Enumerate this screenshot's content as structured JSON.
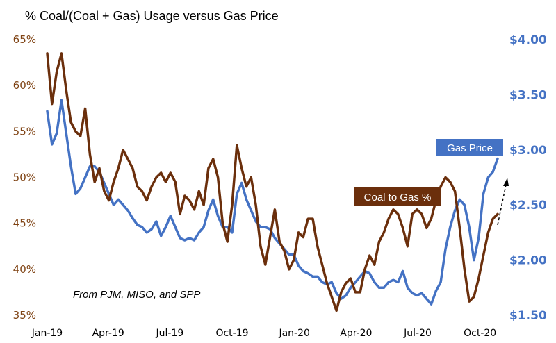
{
  "chart_data": {
    "type": "line",
    "title": "% Coal/(Coal + Gas) Usage versus Gas Price",
    "annotation": "From PJM, MISO, and SPP",
    "x_ticks": [
      "Jan-19",
      "Apr-19",
      "Jul-19",
      "Oct-19",
      "Jan-20",
      "Apr-20",
      "Jul-20",
      "Oct-20"
    ],
    "y_left": {
      "ticks": [
        "35%",
        "40%",
        "45%",
        "50%",
        "55%",
        "60%",
        "65%"
      ],
      "range": [
        35,
        65
      ]
    },
    "y_right": {
      "ticks": [
        "$1.50",
        "$2.00",
        "$2.50",
        "$3.00",
        "$3.50",
        "$4.00"
      ],
      "range": [
        1.5,
        4.0
      ]
    },
    "grid": false,
    "colors": {
      "coal": "#6b2f0c",
      "gas": "#4472c4",
      "left_axis": "#7f4314",
      "right_axis": "#4472c4"
    },
    "series": [
      {
        "name": "Coal to Gas %",
        "axis": "left",
        "x": [
          "2019-01-01",
          "2019-01-08",
          "2019-01-15",
          "2019-01-22",
          "2019-01-29",
          "2019-02-05",
          "2019-02-12",
          "2019-02-19",
          "2019-02-26",
          "2019-03-05",
          "2019-03-12",
          "2019-03-19",
          "2019-03-26",
          "2019-04-02",
          "2019-04-09",
          "2019-04-16",
          "2019-04-23",
          "2019-04-30",
          "2019-05-07",
          "2019-05-14",
          "2019-05-21",
          "2019-05-28",
          "2019-06-04",
          "2019-06-11",
          "2019-06-18",
          "2019-06-25",
          "2019-07-02",
          "2019-07-09",
          "2019-07-16",
          "2019-07-23",
          "2019-07-30",
          "2019-08-06",
          "2019-08-13",
          "2019-08-20",
          "2019-08-27",
          "2019-09-03",
          "2019-09-10",
          "2019-09-17",
          "2019-09-24",
          "2019-10-01",
          "2019-10-08",
          "2019-10-15",
          "2019-10-22",
          "2019-10-29",
          "2019-11-05",
          "2019-11-12",
          "2019-11-19",
          "2019-11-26",
          "2019-12-03",
          "2019-12-10",
          "2019-12-17",
          "2019-12-24",
          "2019-12-31",
          "2020-01-07",
          "2020-01-14",
          "2020-01-21",
          "2020-01-28",
          "2020-02-04",
          "2020-02-11",
          "2020-02-18",
          "2020-02-25",
          "2020-03-03",
          "2020-03-10",
          "2020-03-17",
          "2020-03-24",
          "2020-03-31",
          "2020-04-07",
          "2020-04-14",
          "2020-04-21",
          "2020-04-28",
          "2020-05-05",
          "2020-05-12",
          "2020-05-19",
          "2020-05-26",
          "2020-06-02",
          "2020-06-09",
          "2020-06-16",
          "2020-06-23",
          "2020-06-30",
          "2020-07-07",
          "2020-07-14",
          "2020-07-21",
          "2020-07-28",
          "2020-08-04",
          "2020-08-11",
          "2020-08-18",
          "2020-08-25",
          "2020-09-01",
          "2020-09-08",
          "2020-09-15",
          "2020-09-22",
          "2020-09-29",
          "2020-10-06",
          "2020-10-13",
          "2020-10-20",
          "2020-10-27"
        ],
        "values": [
          63.5,
          58.0,
          61.5,
          63.5,
          59.5,
          56.0,
          55.0,
          54.5,
          57.5,
          52.5,
          49.5,
          51.0,
          48.5,
          47.5,
          49.5,
          51.0,
          53.0,
          52.0,
          51.0,
          49.0,
          48.5,
          47.5,
          49.0,
          50.0,
          50.5,
          49.5,
          50.5,
          49.5,
          46.0,
          48.0,
          47.5,
          46.5,
          48.5,
          47.0,
          51.0,
          52.0,
          50.0,
          45.0,
          43.0,
          47.0,
          53.5,
          51.0,
          49.0,
          50.0,
          47.0,
          42.5,
          40.5,
          43.5,
          46.5,
          43.0,
          42.0,
          40.0,
          41.0,
          44.0,
          43.5,
          45.5,
          45.5,
          42.5,
          40.5,
          38.5,
          37.0,
          35.5,
          37.5,
          38.5,
          39.0,
          37.5,
          37.5,
          40.0,
          41.5,
          40.5,
          43.0,
          44.0,
          45.5,
          46.5,
          46.0,
          44.5,
          42.5,
          46.0,
          46.5,
          46.0,
          44.5,
          45.5,
          47.5,
          49.0,
          50.0,
          49.5,
          48.5,
          44.5,
          40.0,
          36.5,
          37.0,
          39.0,
          41.5,
          44.0,
          45.5,
          46.0
        ],
        "color": "#6b2f0c",
        "label": "Coal to Gas %"
      },
      {
        "name": "Gas Price",
        "axis": "right",
        "x": [
          "2019-01-01",
          "2019-01-08",
          "2019-01-15",
          "2019-01-22",
          "2019-01-29",
          "2019-02-05",
          "2019-02-12",
          "2019-02-19",
          "2019-02-26",
          "2019-03-05",
          "2019-03-12",
          "2019-03-19",
          "2019-03-26",
          "2019-04-02",
          "2019-04-09",
          "2019-04-16",
          "2019-04-23",
          "2019-04-30",
          "2019-05-07",
          "2019-05-14",
          "2019-05-21",
          "2019-05-28",
          "2019-06-04",
          "2019-06-11",
          "2019-06-18",
          "2019-06-25",
          "2019-07-02",
          "2019-07-09",
          "2019-07-16",
          "2019-07-23",
          "2019-07-30",
          "2019-08-06",
          "2019-08-13",
          "2019-08-20",
          "2019-08-27",
          "2019-09-03",
          "2019-09-10",
          "2019-09-17",
          "2019-09-24",
          "2019-10-01",
          "2019-10-08",
          "2019-10-15",
          "2019-10-22",
          "2019-10-29",
          "2019-11-05",
          "2019-11-12",
          "2019-11-19",
          "2019-11-26",
          "2019-12-03",
          "2019-12-10",
          "2019-12-17",
          "2019-12-24",
          "2019-12-31",
          "2020-01-07",
          "2020-01-14",
          "2020-01-21",
          "2020-01-28",
          "2020-02-04",
          "2020-02-11",
          "2020-02-18",
          "2020-02-25",
          "2020-03-03",
          "2020-03-10",
          "2020-03-17",
          "2020-03-24",
          "2020-03-31",
          "2020-04-07",
          "2020-04-14",
          "2020-04-21",
          "2020-04-28",
          "2020-05-05",
          "2020-05-12",
          "2020-05-19",
          "2020-05-26",
          "2020-06-02",
          "2020-06-09",
          "2020-06-16",
          "2020-06-23",
          "2020-06-30",
          "2020-07-07",
          "2020-07-14",
          "2020-07-21",
          "2020-07-28",
          "2020-08-04",
          "2020-08-11",
          "2020-08-18",
          "2020-08-25",
          "2020-09-01",
          "2020-09-08",
          "2020-09-15",
          "2020-09-22",
          "2020-09-29",
          "2020-10-06",
          "2020-10-13",
          "2020-10-20",
          "2020-10-27"
        ],
        "values": [
          3.35,
          3.05,
          3.15,
          3.45,
          3.15,
          2.85,
          2.6,
          2.65,
          2.75,
          2.85,
          2.85,
          2.8,
          2.7,
          2.6,
          2.5,
          2.55,
          2.5,
          2.45,
          2.38,
          2.32,
          2.3,
          2.25,
          2.28,
          2.35,
          2.22,
          2.3,
          2.4,
          2.3,
          2.2,
          2.18,
          2.2,
          2.18,
          2.25,
          2.3,
          2.45,
          2.55,
          2.4,
          2.3,
          2.3,
          2.25,
          2.6,
          2.7,
          2.55,
          2.45,
          2.35,
          2.3,
          2.3,
          2.28,
          2.2,
          2.15,
          2.1,
          2.05,
          2.05,
          1.95,
          1.9,
          1.88,
          1.85,
          1.85,
          1.8,
          1.78,
          1.8,
          1.7,
          1.65,
          1.68,
          1.75,
          1.8,
          1.85,
          1.9,
          1.88,
          1.8,
          1.75,
          1.75,
          1.8,
          1.82,
          1.8,
          1.9,
          1.75,
          1.7,
          1.68,
          1.7,
          1.65,
          1.6,
          1.72,
          1.8,
          2.1,
          2.3,
          2.45,
          2.55,
          2.5,
          2.3,
          2.0,
          2.2,
          2.6,
          2.75,
          2.8,
          2.92
        ],
        "color": "#4472c4",
        "label": "Gas Price"
      }
    ]
  }
}
